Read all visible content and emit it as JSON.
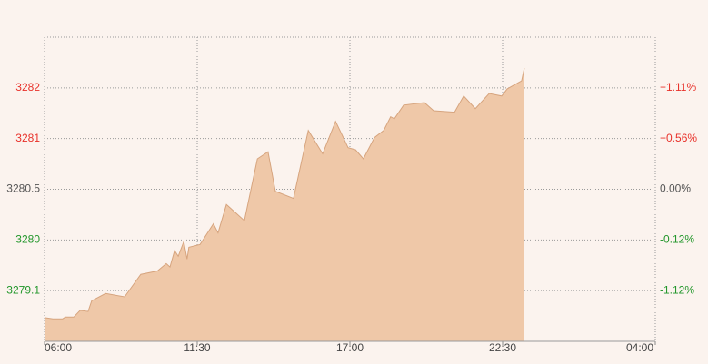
{
  "chart_data": {
    "type": "area",
    "x": [
      "06:00",
      "06:18",
      "06:39",
      "06:45",
      "07:03",
      "07:17",
      "07:34",
      "07:42",
      "08:12",
      "08:53",
      "09:28",
      "10:04",
      "10:23",
      "10:31",
      "10:41",
      "10:49",
      "11:01",
      "11:08",
      "11:12",
      "11:36",
      "11:48",
      "12:05",
      "12:15",
      "12:33",
      "13:12",
      "13:40",
      "14:03",
      "14:19",
      "14:58",
      "15:30",
      "16:01",
      "16:29",
      "16:56",
      "17:12",
      "17:29",
      "17:53",
      "18:13",
      "18:28",
      "18:36",
      "18:56",
      "19:41",
      "20:01",
      "20:46",
      "21:06",
      "21:31",
      "22:01",
      "22:28",
      "22:40",
      "23:11",
      "23:17"
    ],
    "values": [
      3278.62,
      3278.6,
      3278.6,
      3278.63,
      3278.63,
      3278.75,
      3278.73,
      3278.92,
      3279.05,
      3278.99,
      3279.39,
      3279.45,
      3279.58,
      3279.52,
      3279.81,
      3279.71,
      3279.97,
      3279.66,
      3279.87,
      3279.92,
      3280.04,
      3280.16,
      3280.07,
      3280.35,
      3280.19,
      3280.8,
      3280.87,
      3280.48,
      3280.41,
      3281.16,
      3280.85,
      3281.34,
      3280.91,
      3280.89,
      3280.8,
      3281.02,
      3281.16,
      3281.43,
      3281.39,
      3281.66,
      3281.71,
      3281.55,
      3281.52,
      3281.84,
      3281.59,
      3281.89,
      3281.84,
      3281.98,
      3282.14,
      3282.39
    ],
    "xlim": [
      "06:00",
      "04:00"
    ],
    "xticks": [
      "06:00",
      "11:30",
      "17:00",
      "22:30",
      "04:00"
    ],
    "ylim": [
      3278.2,
      3283
    ],
    "yticks": [
      3279.1,
      3280,
      3280.5,
      3281,
      3282
    ],
    "y2lim": [
      -2.12,
      1.66
    ],
    "y2ticks": [
      {
        "value": -1.12,
        "label": "-1.12%"
      },
      {
        "value": -0.12,
        "label": "-0.12%"
      },
      {
        "value": 0,
        "label": "0.00%"
      },
      {
        "value": 0.56,
        "label": "+0.56%"
      },
      {
        "value": 1.11,
        "label": "+1.11%"
      }
    ],
    "grid": true,
    "fill_color": "#efc8a8",
    "line_color": "#d6a47e",
    "up_color": "#e8312a",
    "down_color": "#21962a",
    "flat_color": "#555555"
  }
}
